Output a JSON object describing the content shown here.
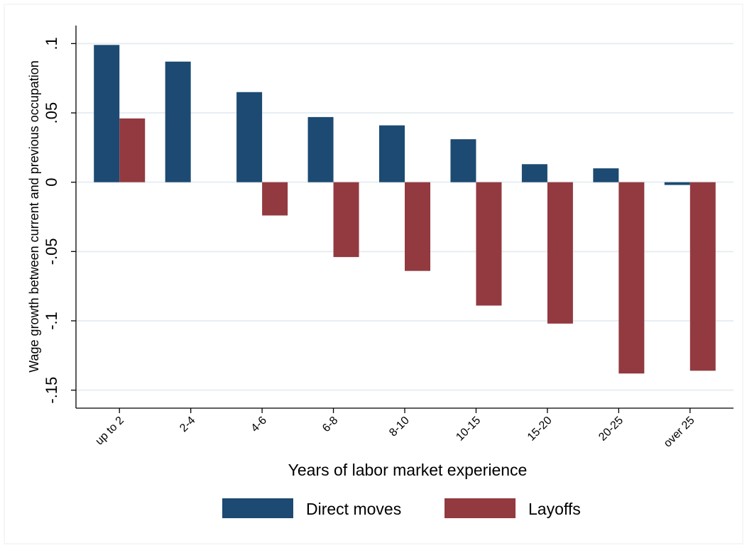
{
  "chart_data": {
    "type": "bar",
    "title": "",
    "xlabel": "Years of labor market experience",
    "ylabel": "Wage growth between current and previous occupation",
    "categories": [
      "up to 2",
      "2-4",
      "4-6",
      "6-8",
      "8-10",
      "10-15",
      "15-20",
      "20-25",
      "over 25"
    ],
    "series": [
      {
        "name": "Direct moves",
        "color": "#1c4a72",
        "values": [
          0.099,
          0.087,
          0.065,
          0.047,
          0.041,
          0.031,
          0.013,
          0.01,
          -0.002
        ]
      },
      {
        "name": "Layoffs",
        "color": "#923a40",
        "values": [
          0.046,
          null,
          -0.024,
          -0.054,
          -0.064,
          -0.089,
          -0.102,
          -0.138,
          -0.136
        ]
      }
    ],
    "yticks": [
      ".1",
      ".05",
      "0",
      "-.05",
      "-.1",
      "-.15"
    ],
    "ylim": [
      -0.163,
      0.113
    ],
    "grid": true,
    "legend": "bottom"
  }
}
